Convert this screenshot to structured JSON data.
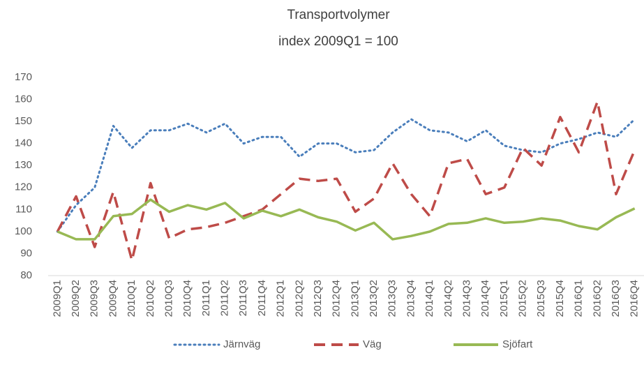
{
  "chart_data": {
    "type": "line",
    "title": "Transportvolymer",
    "subtitle": "index 2009Q1 = 100",
    "categories": [
      "2009Q1",
      "2009Q2",
      "2009Q3",
      "2009Q4",
      "2010Q1",
      "2010Q2",
      "2010Q3",
      "2010Q4",
      "2011Q1",
      "2011Q2",
      "2011Q3",
      "2011Q4",
      "2012Q1",
      "2012Q2",
      "2012Q3",
      "2012Q4",
      "2013Q1",
      "2013Q2",
      "2013Q3",
      "2013Q4",
      "2014Q1",
      "2014Q2",
      "2014Q3",
      "2014Q4",
      "2015Q1",
      "2015Q2",
      "2015Q3",
      "2015Q4",
      "2016Q1",
      "2016Q2",
      "2016Q3",
      "2016Q4"
    ],
    "series": [
      {
        "name": "Järnväg",
        "color": "#4a7ebb",
        "line_style": "dotted",
        "values": [
          100,
          112,
          120,
          148,
          138,
          146,
          146,
          149,
          145,
          149,
          140,
          143,
          143,
          134,
          140,
          140,
          136,
          137,
          145,
          151,
          146,
          145,
          141,
          146,
          139,
          137,
          136,
          140,
          142,
          145,
          143,
          151
        ]
      },
      {
        "name": "Väg",
        "color": "#be4b48",
        "line_style": "dashed",
        "values": [
          100,
          116,
          93,
          118,
          87,
          122,
          97,
          101,
          102,
          104,
          107,
          110,
          117,
          124,
          123,
          124,
          109,
          115,
          131,
          117,
          107,
          131,
          133,
          117,
          120,
          138,
          130,
          152,
          136,
          159,
          117,
          137
        ]
      },
      {
        "name": "Sjöfart",
        "color": "#98b954",
        "line_style": "solid",
        "values": [
          100,
          96.5,
          96.5,
          107,
          108,
          114.5,
          109,
          112,
          110,
          113,
          106,
          109.5,
          107,
          110,
          106.5,
          104.5,
          100.5,
          104,
          96.5,
          98,
          100,
          103.5,
          104,
          106,
          104,
          104.5,
          106,
          105,
          102.5,
          101,
          106.5,
          110.5
        ]
      }
    ],
    "ylim": [
      80,
      170
    ],
    "yticks": [
      80,
      90,
      100,
      110,
      120,
      130,
      140,
      150,
      160,
      170
    ],
    "grid": false,
    "legend": "bottom"
  }
}
